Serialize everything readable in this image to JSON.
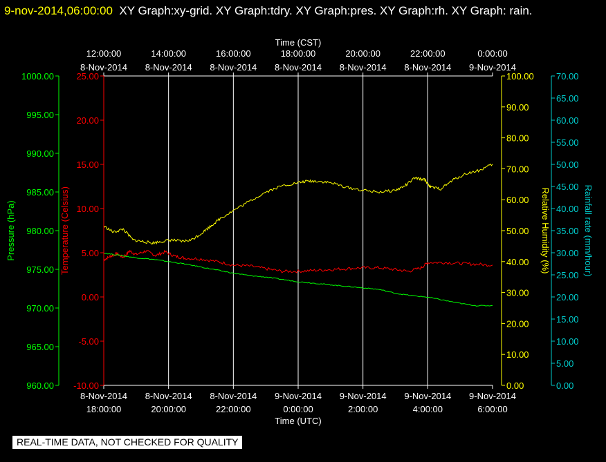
{
  "header": {
    "datetime": "9-nov-2014,06:00:00",
    "graphs": "XY Graph:xy-grid.  XY Graph:tdry.  XY Graph:pres.  XY Graph:rh.  XY Graph: rain."
  },
  "disclaimer": "REAL-TIME DATA, NOT CHECKED FOR QUALITY",
  "colors": {
    "temperature": "#ff0000",
    "pressure": "#00ff00",
    "humidity": "#ffff00",
    "rain": "#00cccc",
    "grid": "#ffffff",
    "frame": "#ffffff"
  },
  "chart_data": {
    "type": "line",
    "grid": true,
    "x_axis_top": {
      "label": "Time (CST)",
      "ticks": [
        {
          "time": "12:00:00",
          "date": "8-Nov-2014"
        },
        {
          "time": "14:00:00",
          "date": "8-Nov-2014"
        },
        {
          "time": "16:00:00",
          "date": "8-Nov-2014"
        },
        {
          "time": "18:00:00",
          "date": "8-Nov-2014"
        },
        {
          "time": "20:00:00",
          "date": "8-Nov-2014"
        },
        {
          "time": "22:00:00",
          "date": "8-Nov-2014"
        },
        {
          "time": "0:00:00",
          "date": "9-Nov-2014"
        }
      ]
    },
    "x_axis_bottom": {
      "label": "Time (UTC)",
      "range": [
        "2014-11-08 18:00:00",
        "2014-11-09 06:00:00"
      ],
      "ticks": [
        {
          "date": "8-Nov-2014",
          "time": "18:00:00"
        },
        {
          "date": "8-Nov-2014",
          "time": "20:00:00"
        },
        {
          "date": "8-Nov-2014",
          "time": "22:00:00"
        },
        {
          "date": "9-Nov-2014",
          "time": "0:00:00"
        },
        {
          "date": "9-Nov-2014",
          "time": "2:00:00"
        },
        {
          "date": "9-Nov-2014",
          "time": "4:00:00"
        },
        {
          "date": "9-Nov-2014",
          "time": "6:00:00"
        }
      ]
    },
    "y_axes": {
      "pressure": {
        "label": "Pressure (hPa)",
        "range": [
          960,
          1000
        ],
        "ticks": [
          "960.00",
          "965.00",
          "970.00",
          "975.00",
          "980.00",
          "985.00",
          "990.00",
          "995.00",
          "1000.00"
        ]
      },
      "temperature": {
        "label": "Temperature (Celsius)",
        "range": [
          -10,
          25
        ],
        "ticks": [
          "-10.00",
          "-5.00",
          "0.00",
          "5.00",
          "10.00",
          "15.00",
          "20.00",
          "25.00"
        ]
      },
      "humidity": {
        "label": "Relative Humidity (%)",
        "range": [
          0,
          100
        ],
        "ticks": [
          "0.00",
          "10.00",
          "20.00",
          "30.00",
          "40.00",
          "50.00",
          "60.00",
          "70.00",
          "80.00",
          "90.00",
          "100.00"
        ]
      },
      "rain": {
        "label": "Rainfall rate (mm/hour)",
        "range": [
          0,
          70
        ],
        "ticks": [
          "0.00",
          "5.00",
          "10.00",
          "15.00",
          "20.00",
          "25.00",
          "30.00",
          "35.00",
          "40.00",
          "45.00",
          "50.00",
          "55.00",
          "60.00",
          "65.00",
          "70.00"
        ]
      }
    },
    "series": [
      {
        "key": "temperature",
        "x_hours_utc": [
          18.0,
          18.2,
          18.4,
          18.6,
          18.8,
          19.0,
          19.3,
          19.6,
          19.9,
          20.2,
          20.5,
          21.0,
          21.5,
          22.0,
          22.5,
          23.0,
          23.5,
          24.0,
          24.5,
          25.0,
          25.5,
          26.0,
          26.5,
          27.0,
          27.4,
          27.8,
          28.0,
          28.5,
          29.0,
          29.5,
          30.0
        ],
        "values": [
          4.2,
          4.6,
          4.9,
          4.5,
          5.2,
          4.8,
          5.2,
          4.7,
          5.1,
          4.6,
          4.4,
          4.3,
          4.0,
          3.6,
          3.5,
          3.2,
          2.9,
          2.9,
          3.0,
          3.1,
          3.2,
          3.3,
          3.3,
          3.1,
          2.9,
          3.3,
          3.9,
          3.9,
          3.8,
          3.7,
          3.6
        ]
      },
      {
        "key": "pressure",
        "x_hours_utc": [
          18.0,
          18.5,
          19.0,
          19.5,
          20.0,
          20.5,
          21.0,
          21.5,
          22.0,
          22.5,
          23.0,
          23.5,
          24.0,
          24.5,
          25.0,
          25.5,
          26.0,
          26.5,
          27.0,
          27.5,
          28.0,
          28.5,
          29.0,
          29.5,
          30.0
        ],
        "values": [
          977.1,
          976.8,
          976.5,
          976.3,
          976.0,
          975.7,
          975.3,
          974.9,
          974.5,
          974.2,
          974.0,
          973.7,
          973.4,
          973.2,
          973.0,
          972.8,
          972.6,
          972.4,
          971.9,
          971.6,
          971.4,
          971.0,
          970.6,
          970.3,
          970.3
        ]
      },
      {
        "key": "humidity",
        "x_hours_utc": [
          18.0,
          18.3,
          18.6,
          18.9,
          19.2,
          19.5,
          19.8,
          20.1,
          20.4,
          20.7,
          21.0,
          21.3,
          21.6,
          22.0,
          22.5,
          23.0,
          23.5,
          24.0,
          24.3,
          24.6,
          25.0,
          25.5,
          26.0,
          26.5,
          27.0,
          27.3,
          27.6,
          27.9,
          28.1,
          28.4,
          28.8,
          29.2,
          29.6,
          30.0
        ],
        "values": [
          51.5,
          49.5,
          50.5,
          47.0,
          46.5,
          46.0,
          46.5,
          47.0,
          46.5,
          47.0,
          49.0,
          51.5,
          54.0,
          56.5,
          59.5,
          62.5,
          64.5,
          65.5,
          66.0,
          66.0,
          65.5,
          64.0,
          63.0,
          62.5,
          63.0,
          64.5,
          67.0,
          66.5,
          64.0,
          63.5,
          66.5,
          68.5,
          69.5,
          71.5
        ]
      },
      {
        "key": "rain",
        "x_hours_utc": [],
        "values": []
      }
    ]
  }
}
